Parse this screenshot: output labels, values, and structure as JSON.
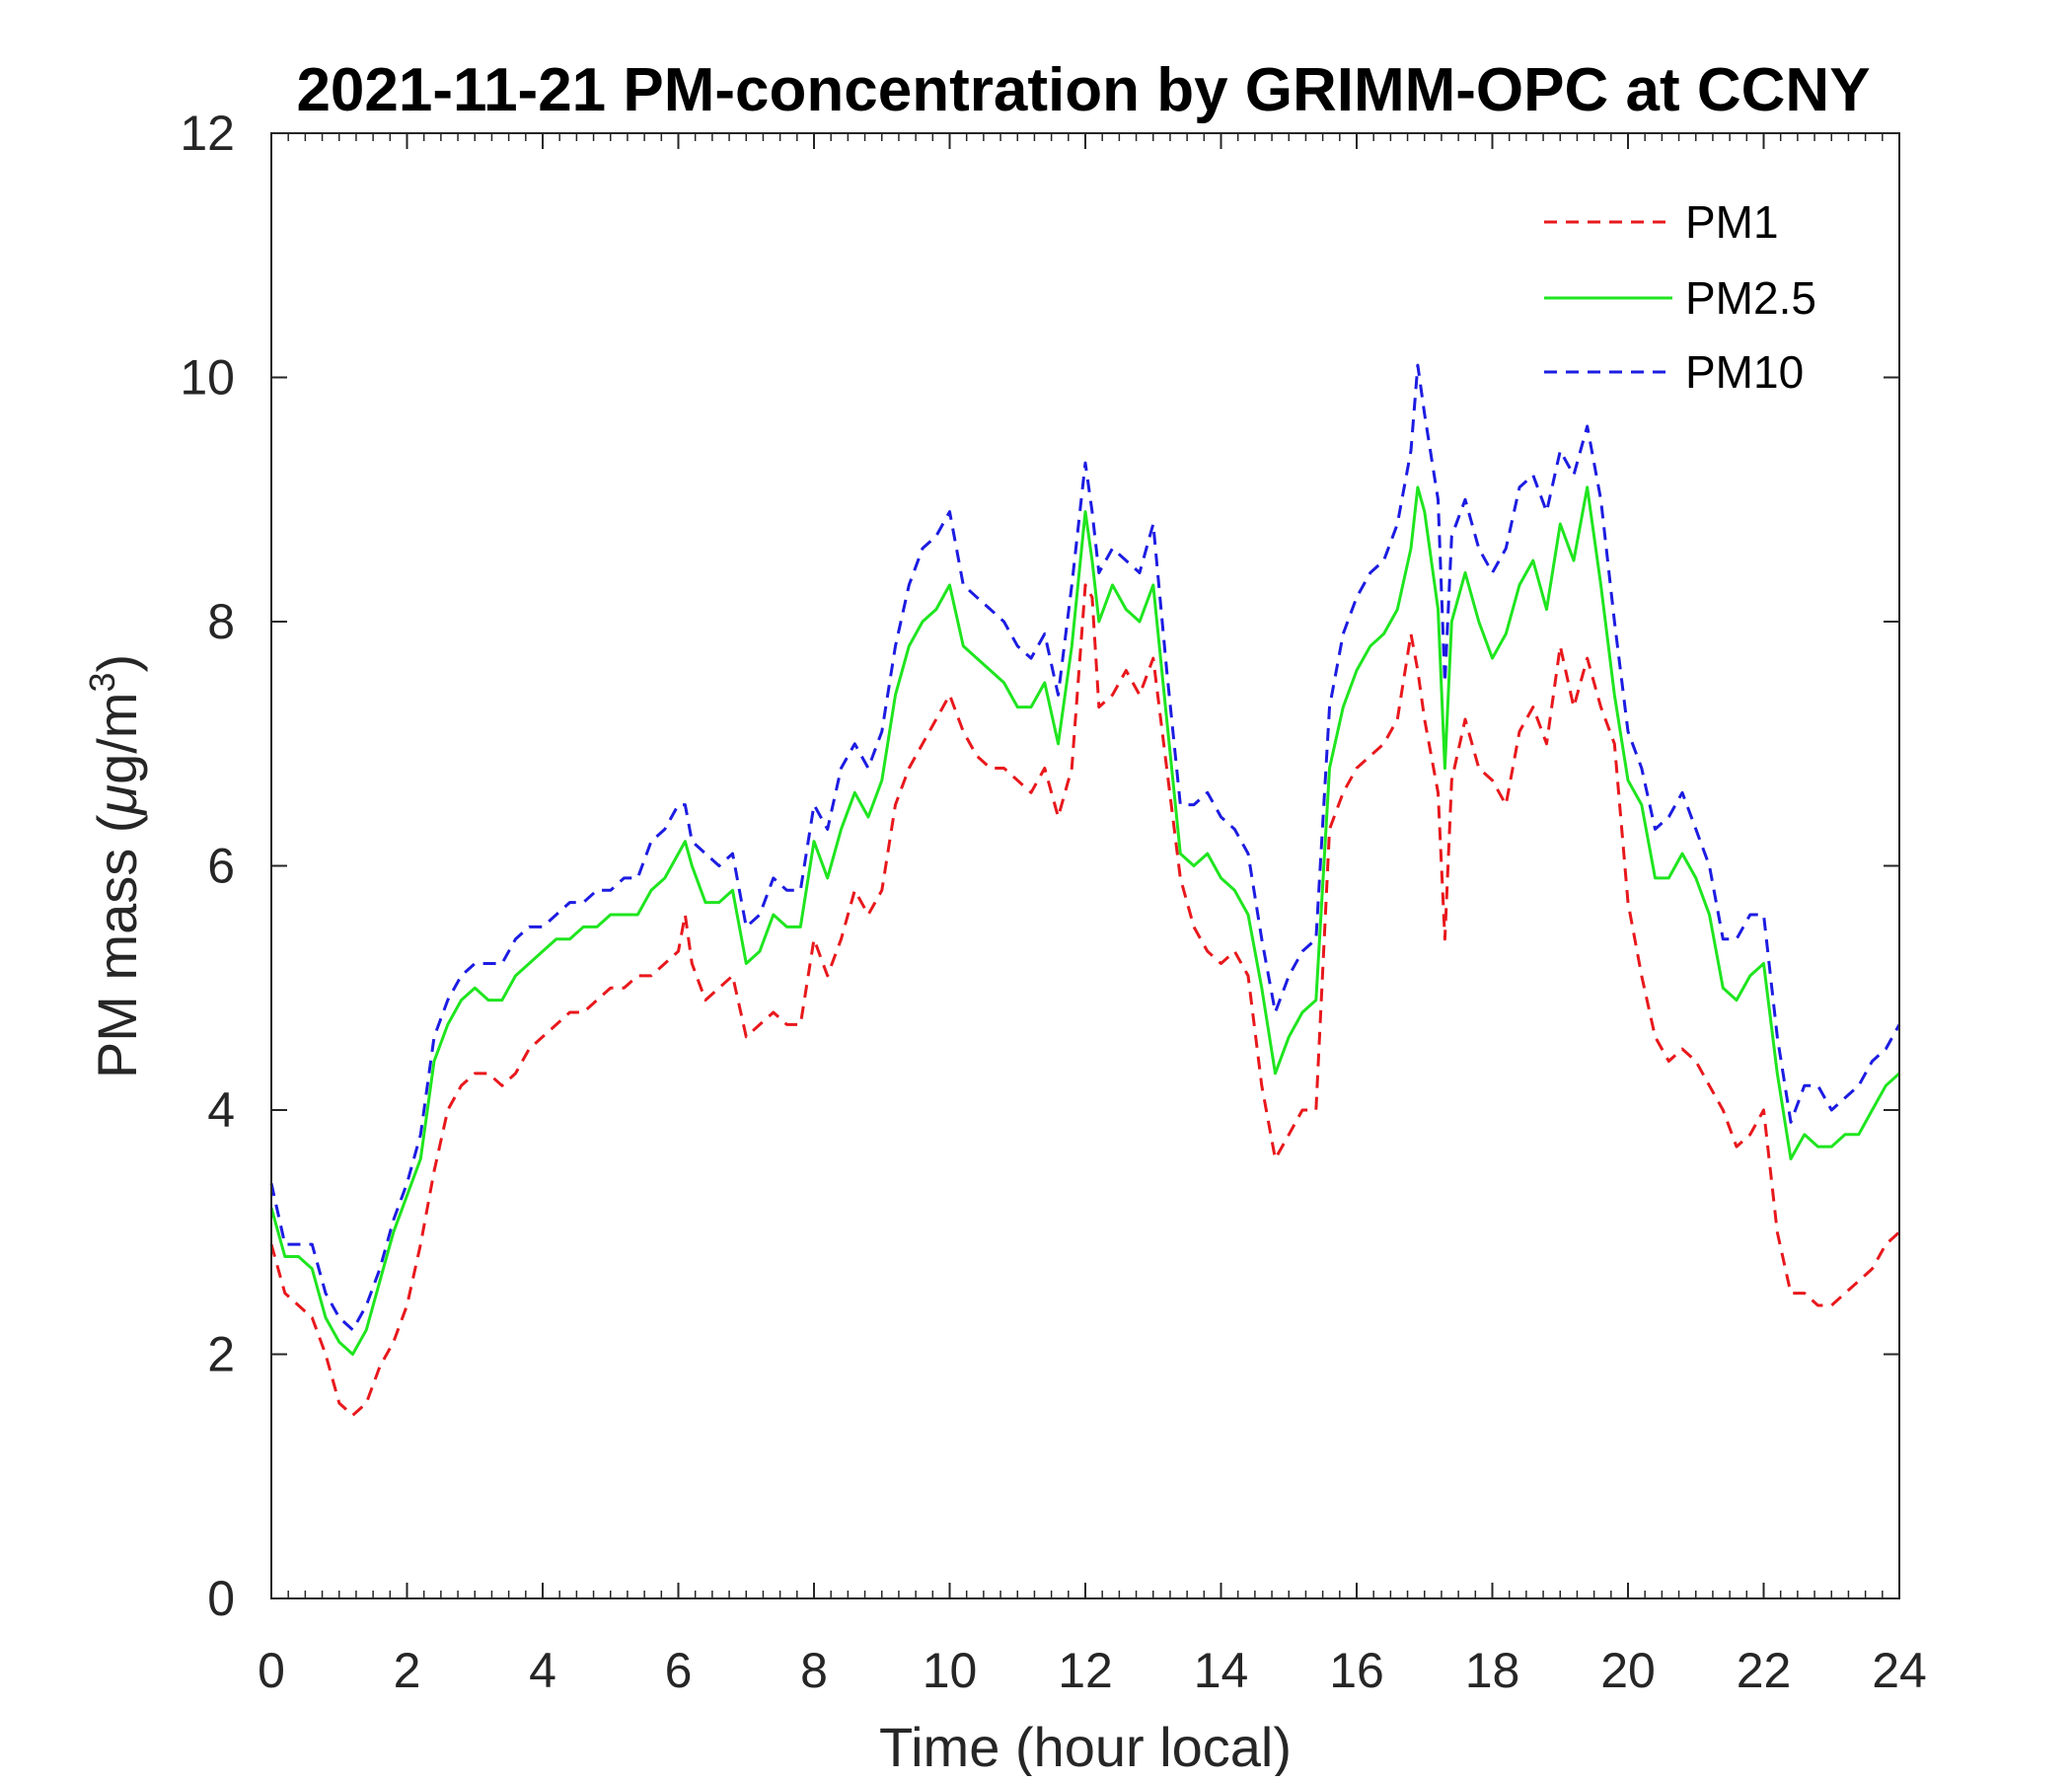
{
  "chart_data": {
    "type": "line",
    "title": "2021-11-21 PM-concentration by GRIMM-OPC at CCNY",
    "xlabel": "Time (hour local)",
    "ylabel_main": "PM mass (",
    "ylabel_mu": "μ",
    "ylabel_unit": "g/m",
    "ylabel_sup": "3",
    "ylabel_close": ")",
    "xlim": [
      0,
      24
    ],
    "ylim": [
      0,
      12
    ],
    "xticks": [
      "0",
      "2",
      "4",
      "6",
      "8",
      "10",
      "12",
      "14",
      "16",
      "18",
      "20",
      "22",
      "24"
    ],
    "yticks": [
      "0",
      "2",
      "4",
      "6",
      "8",
      "10",
      "12"
    ],
    "grid": false,
    "legend_position": "top-right",
    "series": [
      {
        "name": "PM1",
        "color": "#e8181c",
        "dash": "dashed",
        "x": [
          0,
          0.2,
          0.4,
          0.6,
          0.8,
          1.0,
          1.2,
          1.4,
          1.6,
          1.8,
          2.0,
          2.2,
          2.4,
          2.6,
          2.8,
          3.0,
          3.2,
          3.4,
          3.6,
          3.8,
          4.0,
          4.2,
          4.4,
          4.6,
          4.8,
          5.0,
          5.2,
          5.4,
          5.6,
          5.8,
          6.0,
          6.1,
          6.2,
          6.4,
          6.6,
          6.8,
          7.0,
          7.2,
          7.4,
          7.6,
          7.8,
          8.0,
          8.2,
          8.4,
          8.6,
          8.8,
          9.0,
          9.2,
          9.4,
          9.6,
          9.8,
          10.0,
          10.2,
          10.4,
          10.6,
          10.8,
          11.0,
          11.2,
          11.4,
          11.6,
          11.8,
          12.0,
          12.1,
          12.2,
          12.4,
          12.6,
          12.8,
          13.0,
          13.2,
          13.4,
          13.6,
          13.8,
          14.0,
          14.2,
          14.4,
          14.6,
          14.8,
          15.0,
          15.2,
          15.4,
          15.6,
          15.8,
          16.0,
          16.2,
          16.4,
          16.6,
          16.8,
          16.9,
          17.0,
          17.2,
          17.3,
          17.4,
          17.6,
          17.8,
          18.0,
          18.2,
          18.4,
          18.6,
          18.8,
          19.0,
          19.2,
          19.4,
          19.6,
          19.8,
          20.0,
          20.2,
          20.4,
          20.6,
          20.8,
          21.0,
          21.2,
          21.4,
          21.6,
          21.8,
          22.0,
          22.2,
          22.4,
          22.6,
          22.8,
          23.0,
          23.2,
          23.4,
          23.6,
          23.8,
          24.0
        ],
        "y": [
          2.9,
          2.5,
          2.4,
          2.3,
          2.0,
          1.6,
          1.5,
          1.6,
          1.9,
          2.1,
          2.4,
          2.9,
          3.5,
          4.0,
          4.2,
          4.3,
          4.3,
          4.2,
          4.3,
          4.5,
          4.6,
          4.7,
          4.8,
          4.8,
          4.9,
          5.0,
          5.0,
          5.1,
          5.1,
          5.2,
          5.3,
          5.6,
          5.2,
          4.9,
          5.0,
          5.1,
          4.6,
          4.7,
          4.8,
          4.7,
          4.7,
          5.4,
          5.1,
          5.4,
          5.8,
          5.6,
          5.8,
          6.5,
          6.8,
          7.0,
          7.2,
          7.4,
          7.1,
          6.9,
          6.8,
          6.8,
          6.7,
          6.6,
          6.8,
          6.4,
          6.8,
          8.3,
          8.2,
          7.3,
          7.4,
          7.6,
          7.4,
          7.7,
          6.8,
          5.9,
          5.5,
          5.3,
          5.2,
          5.3,
          5.1,
          4.2,
          3.6,
          3.8,
          4.0,
          4.0,
          6.3,
          6.6,
          6.8,
          6.9,
          7.0,
          7.2,
          7.9,
          7.6,
          7.2,
          6.6,
          5.4,
          6.7,
          7.2,
          6.8,
          6.7,
          6.5,
          7.1,
          7.3,
          7.0,
          7.8,
          7.3,
          7.7,
          7.3,
          7.0,
          5.7,
          5.1,
          4.6,
          4.4,
          4.5,
          4.4,
          4.2,
          4.0,
          3.7,
          3.8,
          4.0,
          3.0,
          2.5,
          2.5,
          2.4,
          2.4,
          2.5,
          2.6,
          2.7,
          2.9,
          3.0
        ]
      },
      {
        "name": "PM2.5",
        "color": "#1fe51f",
        "dash": "solid",
        "x": [
          0,
          0.2,
          0.4,
          0.6,
          0.8,
          1.0,
          1.2,
          1.4,
          1.6,
          1.8,
          2.0,
          2.2,
          2.4,
          2.6,
          2.8,
          3.0,
          3.2,
          3.4,
          3.6,
          3.8,
          4.0,
          4.2,
          4.4,
          4.6,
          4.8,
          5.0,
          5.2,
          5.4,
          5.6,
          5.8,
          6.0,
          6.1,
          6.2,
          6.4,
          6.6,
          6.8,
          7.0,
          7.2,
          7.4,
          7.6,
          7.8,
          8.0,
          8.2,
          8.4,
          8.6,
          8.8,
          9.0,
          9.2,
          9.4,
          9.6,
          9.8,
          10.0,
          10.2,
          10.4,
          10.6,
          10.8,
          11.0,
          11.2,
          11.4,
          11.6,
          11.8,
          12.0,
          12.1,
          12.2,
          12.4,
          12.6,
          12.8,
          13.0,
          13.2,
          13.4,
          13.6,
          13.8,
          14.0,
          14.2,
          14.4,
          14.6,
          14.8,
          15.0,
          15.2,
          15.4,
          15.6,
          15.8,
          16.0,
          16.2,
          16.4,
          16.6,
          16.8,
          16.9,
          17.0,
          17.2,
          17.3,
          17.4,
          17.6,
          17.8,
          18.0,
          18.2,
          18.4,
          18.6,
          18.8,
          19.0,
          19.2,
          19.4,
          19.6,
          19.8,
          20.0,
          20.2,
          20.4,
          20.6,
          20.8,
          21.0,
          21.2,
          21.4,
          21.6,
          21.8,
          22.0,
          22.2,
          22.4,
          22.6,
          22.8,
          23.0,
          23.2,
          23.4,
          23.6,
          23.8,
          24.0
        ],
        "y": [
          3.2,
          2.8,
          2.8,
          2.7,
          2.3,
          2.1,
          2.0,
          2.2,
          2.6,
          3.0,
          3.3,
          3.6,
          4.4,
          4.7,
          4.9,
          5.0,
          4.9,
          4.9,
          5.1,
          5.2,
          5.3,
          5.4,
          5.4,
          5.5,
          5.5,
          5.6,
          5.6,
          5.6,
          5.8,
          5.9,
          6.1,
          6.2,
          6.0,
          5.7,
          5.7,
          5.8,
          5.2,
          5.3,
          5.6,
          5.5,
          5.5,
          6.2,
          5.9,
          6.3,
          6.6,
          6.4,
          6.7,
          7.4,
          7.8,
          8.0,
          8.1,
          8.3,
          7.8,
          7.7,
          7.6,
          7.5,
          7.3,
          7.3,
          7.5,
          7.0,
          7.8,
          8.9,
          8.5,
          8.0,
          8.3,
          8.1,
          8.0,
          8.3,
          7.2,
          6.1,
          6.0,
          6.1,
          5.9,
          5.8,
          5.6,
          5.0,
          4.3,
          4.6,
          4.8,
          4.9,
          6.8,
          7.3,
          7.6,
          7.8,
          7.9,
          8.1,
          8.6,
          9.1,
          8.9,
          8.1,
          6.8,
          8.0,
          8.4,
          8.0,
          7.7,
          7.9,
          8.3,
          8.5,
          8.1,
          8.8,
          8.5,
          9.1,
          8.3,
          7.4,
          6.7,
          6.5,
          5.9,
          5.9,
          6.1,
          5.9,
          5.6,
          5.0,
          4.9,
          5.1,
          5.2,
          4.3,
          3.6,
          3.8,
          3.7,
          3.7,
          3.8,
          3.8,
          4.0,
          4.2,
          4.3
        ]
      },
      {
        "name": "PM10",
        "color": "#1c1ce2",
        "dash": "dashed",
        "x": [
          0,
          0.2,
          0.4,
          0.6,
          0.8,
          1.0,
          1.2,
          1.4,
          1.6,
          1.8,
          2.0,
          2.2,
          2.4,
          2.6,
          2.8,
          3.0,
          3.2,
          3.4,
          3.6,
          3.8,
          4.0,
          4.2,
          4.4,
          4.6,
          4.8,
          5.0,
          5.2,
          5.4,
          5.6,
          5.8,
          6.0,
          6.1,
          6.2,
          6.4,
          6.6,
          6.8,
          7.0,
          7.2,
          7.4,
          7.6,
          7.8,
          8.0,
          8.2,
          8.4,
          8.6,
          8.8,
          9.0,
          9.2,
          9.4,
          9.6,
          9.8,
          10.0,
          10.2,
          10.4,
          10.6,
          10.8,
          11.0,
          11.2,
          11.4,
          11.6,
          11.8,
          12.0,
          12.1,
          12.2,
          12.4,
          12.6,
          12.8,
          13.0,
          13.2,
          13.4,
          13.6,
          13.8,
          14.0,
          14.2,
          14.4,
          14.6,
          14.8,
          15.0,
          15.2,
          15.4,
          15.6,
          15.8,
          16.0,
          16.2,
          16.4,
          16.6,
          16.8,
          16.9,
          17.0,
          17.2,
          17.3,
          17.4,
          17.6,
          17.8,
          18.0,
          18.2,
          18.4,
          18.6,
          18.8,
          19.0,
          19.2,
          19.4,
          19.6,
          19.8,
          20.0,
          20.2,
          20.4,
          20.6,
          20.8,
          21.0,
          21.2,
          21.4,
          21.6,
          21.8,
          22.0,
          22.2,
          22.4,
          22.6,
          22.8,
          23.0,
          23.2,
          23.4,
          23.6,
          23.8,
          24.0
        ],
        "y": [
          3.4,
          2.9,
          2.9,
          2.9,
          2.5,
          2.3,
          2.2,
          2.4,
          2.7,
          3.1,
          3.4,
          3.8,
          4.6,
          4.9,
          5.1,
          5.2,
          5.2,
          5.2,
          5.4,
          5.5,
          5.5,
          5.6,
          5.7,
          5.7,
          5.8,
          5.8,
          5.9,
          5.9,
          6.2,
          6.3,
          6.5,
          6.5,
          6.2,
          6.1,
          6.0,
          6.1,
          5.5,
          5.6,
          5.9,
          5.8,
          5.8,
          6.5,
          6.3,
          6.8,
          7.0,
          6.8,
          7.1,
          7.8,
          8.3,
          8.6,
          8.7,
          8.9,
          8.3,
          8.2,
          8.1,
          8.0,
          7.8,
          7.7,
          7.9,
          7.4,
          8.3,
          9.3,
          8.9,
          8.4,
          8.6,
          8.5,
          8.4,
          8.8,
          7.6,
          6.5,
          6.5,
          6.6,
          6.4,
          6.3,
          6.1,
          5.4,
          4.8,
          5.1,
          5.3,
          5.4,
          7.3,
          7.9,
          8.2,
          8.4,
          8.5,
          8.8,
          9.4,
          10.1,
          9.7,
          9.0,
          7.5,
          8.7,
          9.0,
          8.6,
          8.4,
          8.6,
          9.1,
          9.2,
          8.9,
          9.4,
          9.2,
          9.6,
          9.0,
          8.0,
          7.1,
          6.8,
          6.3,
          6.4,
          6.6,
          6.3,
          6.0,
          5.4,
          5.4,
          5.6,
          5.6,
          4.6,
          3.9,
          4.2,
          4.2,
          4.0,
          4.1,
          4.2,
          4.4,
          4.5,
          4.7
        ]
      }
    ]
  }
}
